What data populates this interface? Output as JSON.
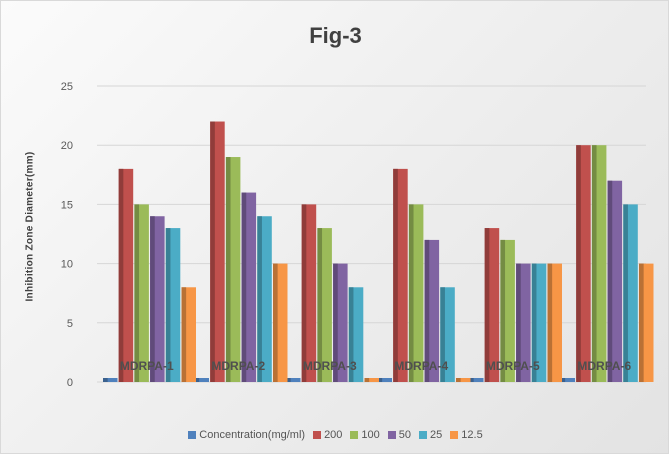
{
  "chart_data": {
    "type": "bar",
    "title": "Fig-3",
    "xlabel": "",
    "ylabel": "Inhibition Zone Diameter(mm)",
    "ylim": [
      0,
      25
    ],
    "yticks": [
      "0",
      "5",
      "10",
      "15",
      "20",
      "25"
    ],
    "grid": true,
    "legend_position": "bottom",
    "categories": [
      "MDRPA-1",
      "MDRPA-2",
      "MDRPA-3",
      "MDRPA-4",
      "MDRPA-5",
      "MDRPA-6"
    ],
    "series": [
      {
        "name": "Concentration(mg/ml)",
        "color": "#4f81bd",
        "values": [
          0,
          0,
          0,
          0,
          0,
          0
        ]
      },
      {
        "name": "200",
        "color": "#c0504d",
        "values": [
          18,
          22,
          15,
          18,
          13,
          20
        ]
      },
      {
        "name": "100",
        "color": "#9bbb59",
        "values": [
          15,
          19,
          13,
          15,
          12,
          20
        ]
      },
      {
        "name": "50",
        "color": "#8064a2",
        "values": [
          14,
          16,
          10,
          12,
          10,
          17
        ]
      },
      {
        "name": "25",
        "color": "#4bacc6",
        "values": [
          13,
          14,
          8,
          8,
          10,
          15
        ]
      },
      {
        "name": "12.5",
        "color": "#f79646",
        "values": [
          8,
          10,
          0,
          0,
          10,
          10
        ]
      }
    ]
  }
}
